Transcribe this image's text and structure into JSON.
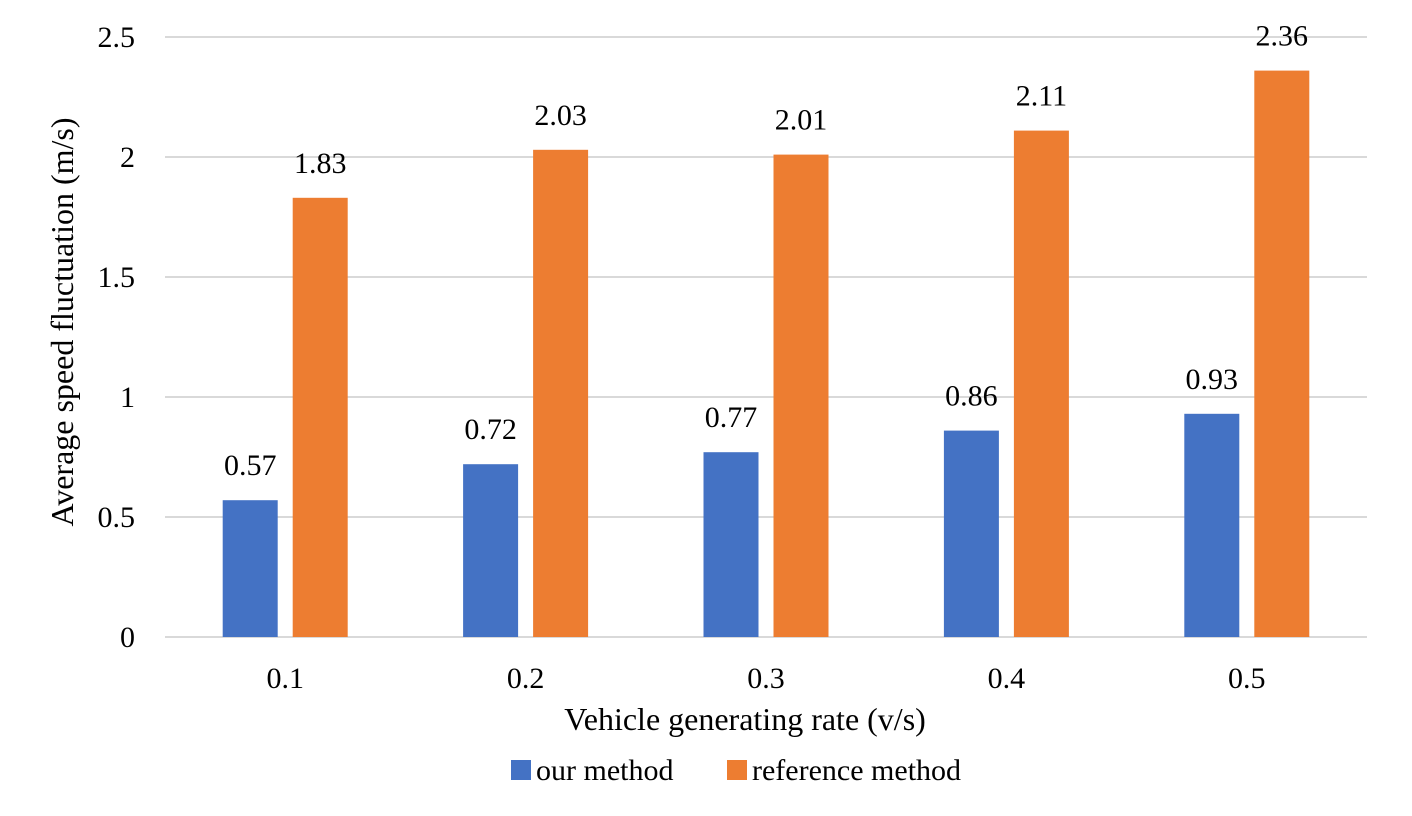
{
  "chart_data": {
    "type": "bar",
    "title": "",
    "xlabel": "Vehicle generating rate (v/s)",
    "ylabel": "Average speed fluctuation (m/s)",
    "categories": [
      "0.1",
      "0.2",
      "0.3",
      "0.4",
      "0.5"
    ],
    "series": [
      {
        "name": "our method",
        "color": "#4472c4",
        "values": [
          0.57,
          0.72,
          0.77,
          0.86,
          0.93
        ]
      },
      {
        "name": "reference method",
        "color": "#ed7d31",
        "values": [
          1.83,
          2.03,
          2.01,
          2.11,
          2.36
        ]
      }
    ],
    "ylim": [
      0,
      2.5
    ],
    "yticks": [
      0,
      0.5,
      1,
      1.5,
      2,
      2.5
    ],
    "ytick_labels": [
      "0",
      "0.5",
      "1",
      "1.5",
      "2",
      "2.5"
    ],
    "data_labels": [
      [
        "0.57",
        "0.72",
        "0.77",
        "0.86",
        "0.93"
      ],
      [
        "1.83",
        "2.03",
        "2.01",
        "2.11",
        "2.36"
      ]
    ],
    "grid": true,
    "legend": "bottom-center"
  }
}
